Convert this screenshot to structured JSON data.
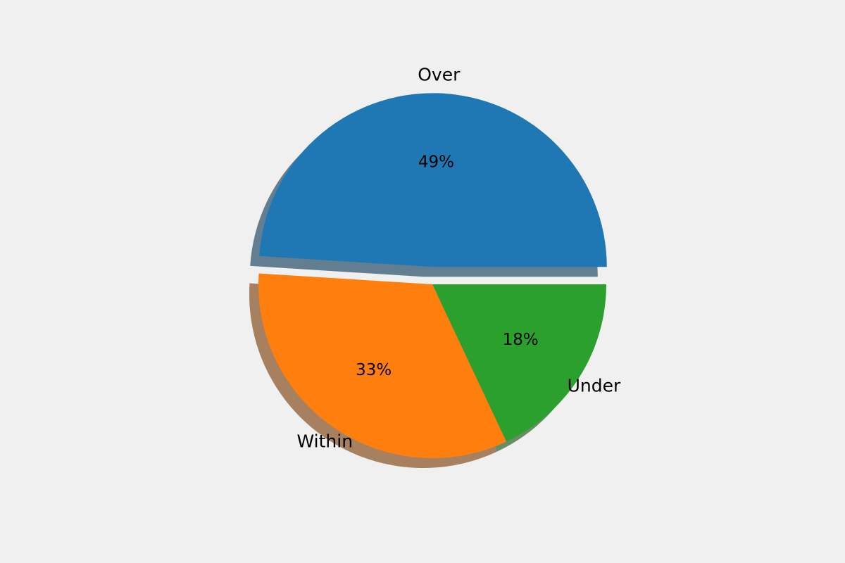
{
  "chart_data": {
    "type": "pie",
    "categories": [
      "Over",
      "Within",
      "Under"
    ],
    "values": [
      49,
      33,
      18
    ],
    "value_labels": [
      "49%",
      "33%",
      "18%"
    ],
    "colors": [
      "#1f77b4",
      "#ff7f0e",
      "#2ca02c"
    ],
    "explode": [
      0.1,
      0,
      0
    ],
    "shadow": true,
    "start_angle": 0
  }
}
